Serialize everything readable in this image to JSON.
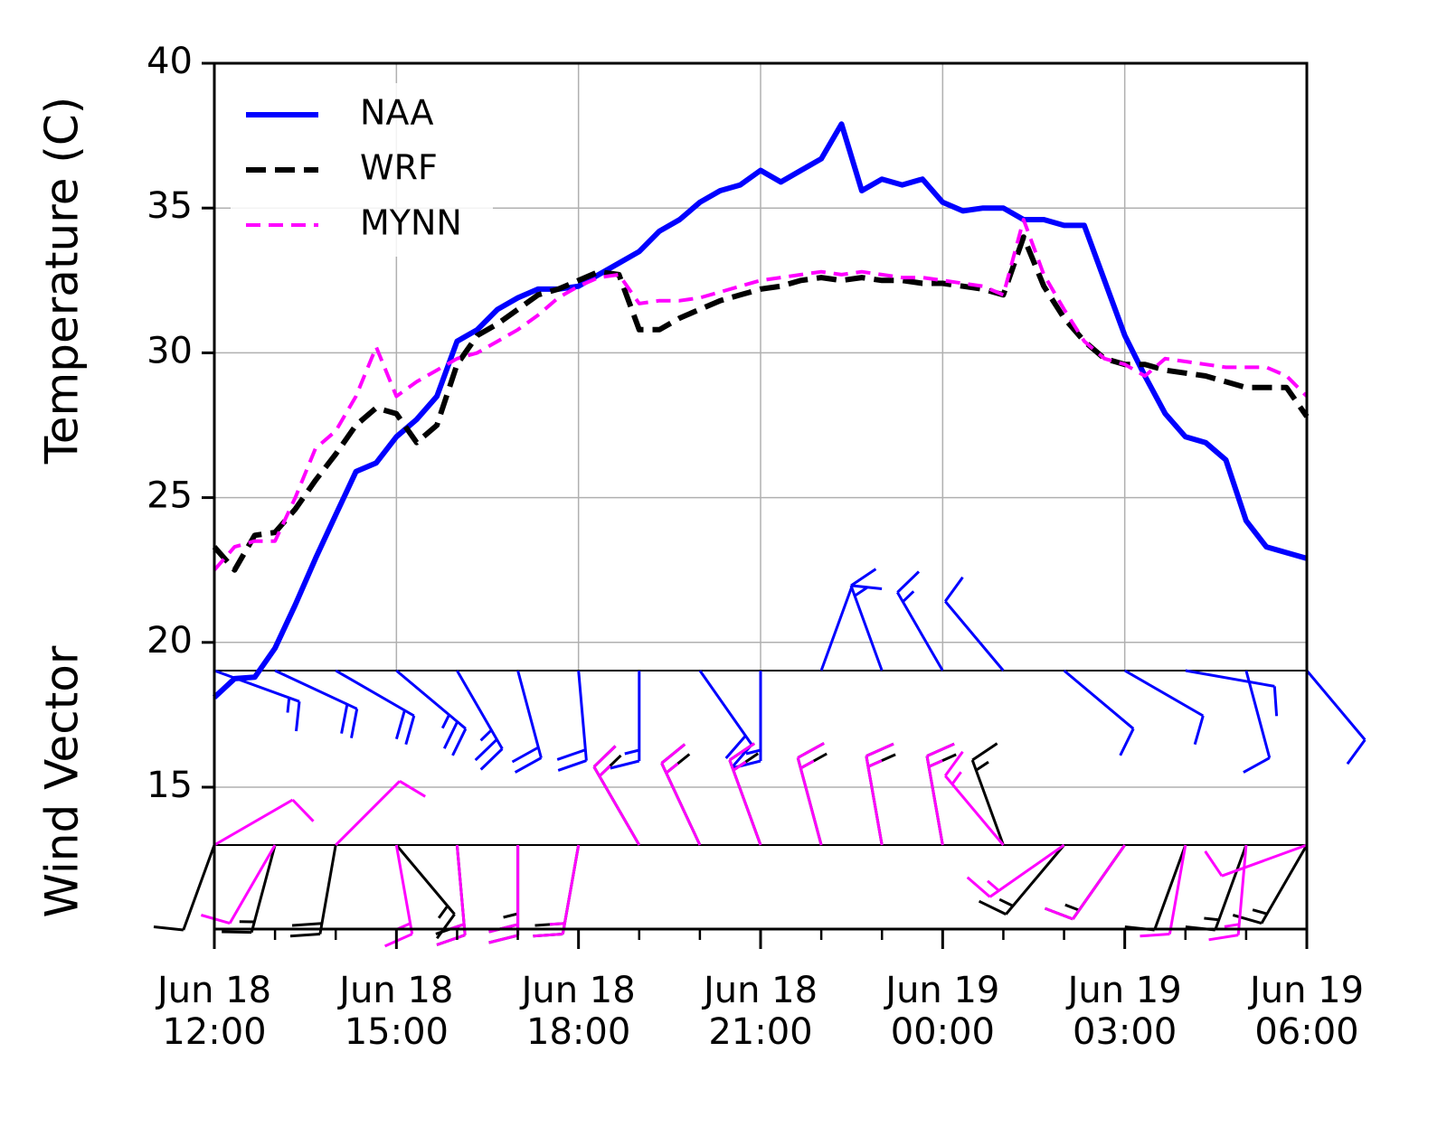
{
  "chart_data": {
    "type": "line",
    "ylabel": "Temperature (C)",
    "wind_label": "Wind Vector",
    "legend": "upper left",
    "grid": true,
    "xlim": [
      "Jun 18 12:00",
      "Jun 19 06:00"
    ],
    "xticks": [
      "Jun 18 12:00",
      "Jun 18 15:00",
      "Jun 18 18:00",
      "Jun 18 21:00",
      "Jun 19 00:00",
      "Jun 19 03:00",
      "Jun 19 06:00"
    ],
    "xminorticks": [
      "Jun 18 13:00",
      "Jun 18 14:00",
      "Jun 18 16:00",
      "Jun 18 17:00",
      "Jun 18 19:00",
      "Jun 18 20:00",
      "Jun 18 22:00",
      "Jun 18 23:00",
      "Jun 19 01:00",
      "Jun 19 02:00",
      "Jun 19 04:00",
      "Jun 19 05:00"
    ],
    "ylim": [
      10.1,
      40
    ],
    "yticks": [
      15,
      20,
      25,
      30,
      35,
      40
    ],
    "x": [
      "Jun 18 12:00",
      "Jun 18 12:20",
      "Jun 18 12:40",
      "Jun 18 13:00",
      "Jun 18 13:20",
      "Jun 18 13:40",
      "Jun 18 14:00",
      "Jun 18 14:20",
      "Jun 18 14:40",
      "Jun 18 15:00",
      "Jun 18 15:20",
      "Jun 18 15:40",
      "Jun 18 16:00",
      "Jun 18 16:20",
      "Jun 18 16:40",
      "Jun 18 17:00",
      "Jun 18 17:20",
      "Jun 18 17:40",
      "Jun 18 18:00",
      "Jun 18 18:20",
      "Jun 18 18:40",
      "Jun 18 19:00",
      "Jun 18 19:20",
      "Jun 18 19:40",
      "Jun 18 20:00",
      "Jun 18 20:20",
      "Jun 18 20:40",
      "Jun 18 21:00",
      "Jun 18 21:20",
      "Jun 18 21:40",
      "Jun 18 22:00",
      "Jun 18 22:20",
      "Jun 18 22:40",
      "Jun 18 23:00",
      "Jun 18 23:20",
      "Jun 18 23:40",
      "Jun 19 00:00",
      "Jun 19 00:20",
      "Jun 19 00:40",
      "Jun 19 01:00",
      "Jun 19 01:20",
      "Jun 19 01:40",
      "Jun 19 02:00",
      "Jun 19 02:20",
      "Jun 19 02:40",
      "Jun 19 03:00",
      "Jun 19 03:20",
      "Jun 19 03:40",
      "Jun 19 04:00",
      "Jun 19 04:20",
      "Jun 19 04:40",
      "Jun 19 05:00",
      "Jun 19 05:20",
      "Jun 19 05:40",
      "Jun 19 06:00"
    ],
    "series": [
      {
        "name": "NAA",
        "color": "#0000ff",
        "dash": "solid",
        "values": [
          18.1,
          18.75,
          18.8,
          19.8,
          21.3,
          22.9,
          24.4,
          25.9,
          26.2,
          27.1,
          27.7,
          28.5,
          30.4,
          30.8,
          31.5,
          31.9,
          32.2,
          32.2,
          32.3,
          32.7,
          33.1,
          33.5,
          34.2,
          34.6,
          35.2,
          35.6,
          35.8,
          36.3,
          35.9,
          36.3,
          36.7,
          37.9,
          35.6,
          36.0,
          35.8,
          36.0,
          35.2,
          34.9,
          35.0,
          35.0,
          34.6,
          34.6,
          34.4,
          34.4,
          32.5,
          30.6,
          29.2,
          27.9,
          27.1,
          26.9,
          26.3,
          24.2,
          23.3,
          23.1,
          22.9
        ]
      },
      {
        "name": "WRF",
        "color": "#000000",
        "dash": "dashed",
        "values": [
          23.3,
          22.5,
          23.7,
          23.8,
          24.6,
          25.6,
          26.5,
          27.5,
          28.1,
          27.9,
          26.9,
          27.5,
          29.6,
          30.6,
          31.0,
          31.5,
          32.0,
          32.2,
          32.5,
          32.8,
          32.7,
          30.8,
          30.8,
          31.2,
          31.5,
          31.8,
          32.0,
          32.2,
          32.3,
          32.5,
          32.6,
          32.5,
          32.6,
          32.5,
          32.5,
          32.4,
          32.4,
          32.3,
          32.2,
          32.0,
          34.0,
          32.3,
          31.2,
          30.4,
          29.8,
          29.6,
          29.6,
          29.4,
          29.3,
          29.2,
          29.0,
          28.8,
          28.8,
          28.8,
          27.8
        ]
      },
      {
        "name": "MYNN",
        "color": "#ff00ff",
        "dash": "dashed-thin",
        "values": [
          22.5,
          23.3,
          23.5,
          23.5,
          25.0,
          26.7,
          27.3,
          28.5,
          30.2,
          28.5,
          29.0,
          29.4,
          29.8,
          30.0,
          30.4,
          30.8,
          31.3,
          31.9,
          32.3,
          32.6,
          32.7,
          31.7,
          31.8,
          31.8,
          31.9,
          32.1,
          32.3,
          32.5,
          32.6,
          32.7,
          32.8,
          32.7,
          32.8,
          32.7,
          32.6,
          32.6,
          32.5,
          32.4,
          32.3,
          32.0,
          34.6,
          32.7,
          31.5,
          30.4,
          29.8,
          29.6,
          29.2,
          29.8,
          29.7,
          29.6,
          29.5,
          29.5,
          29.5,
          29.2,
          28.5
        ]
      }
    ],
    "wind": {
      "x": [
        "Jun 18 12:00",
        "Jun 18 13:00",
        "Jun 18 14:00",
        "Jun 18 15:00",
        "Jun 18 16:00",
        "Jun 18 17:00",
        "Jun 18 18:00",
        "Jun 18 19:00",
        "Jun 18 20:00",
        "Jun 18 21:00",
        "Jun 18 22:00",
        "Jun 18 23:00",
        "Jun 19 00:00",
        "Jun 19 01:00",
        "Jun 19 02:00",
        "Jun 19 03:00",
        "Jun 19 04:00",
        "Jun 19 05:00",
        "Jun 19 06:00"
      ],
      "series": [
        {
          "color": "#0000ff",
          "direction": [
            110,
            115,
            120,
            130,
            150,
            165,
            175,
            180,
            145,
            180,
            20,
            340,
            330,
            320,
            130,
            120,
            100,
            165,
            140
          ],
          "speed": [
            15,
            20,
            20,
            25,
            25,
            20,
            20,
            15,
            20,
            15,
            10,
            15,
            15,
            10,
            10,
            10,
            10,
            10,
            10
          ]
        },
        {
          "color": "#000000",
          "direction": [
            200,
            195,
            190,
            140,
            175,
            180,
            190,
            330,
            335,
            340,
            345,
            350,
            350,
            340,
            220,
            215,
            200,
            200,
            210
          ],
          "speed": [
            10,
            15,
            20,
            15,
            20,
            25,
            20,
            20,
            20,
            20,
            20,
            20,
            20,
            15,
            15,
            15,
            10,
            15,
            15
          ]
        },
        {
          "color": "#ff00ff",
          "direction": [
            60,
            210,
            45,
            170,
            175,
            180,
            190,
            330,
            335,
            340,
            345,
            350,
            350,
            320,
            235,
            215,
            190,
            185,
            250
          ],
          "speed": [
            10,
            10,
            10,
            15,
            15,
            20,
            15,
            15,
            15,
            15,
            15,
            15,
            15,
            15,
            15,
            10,
            10,
            15,
            10
          ]
        }
      ]
    }
  }
}
